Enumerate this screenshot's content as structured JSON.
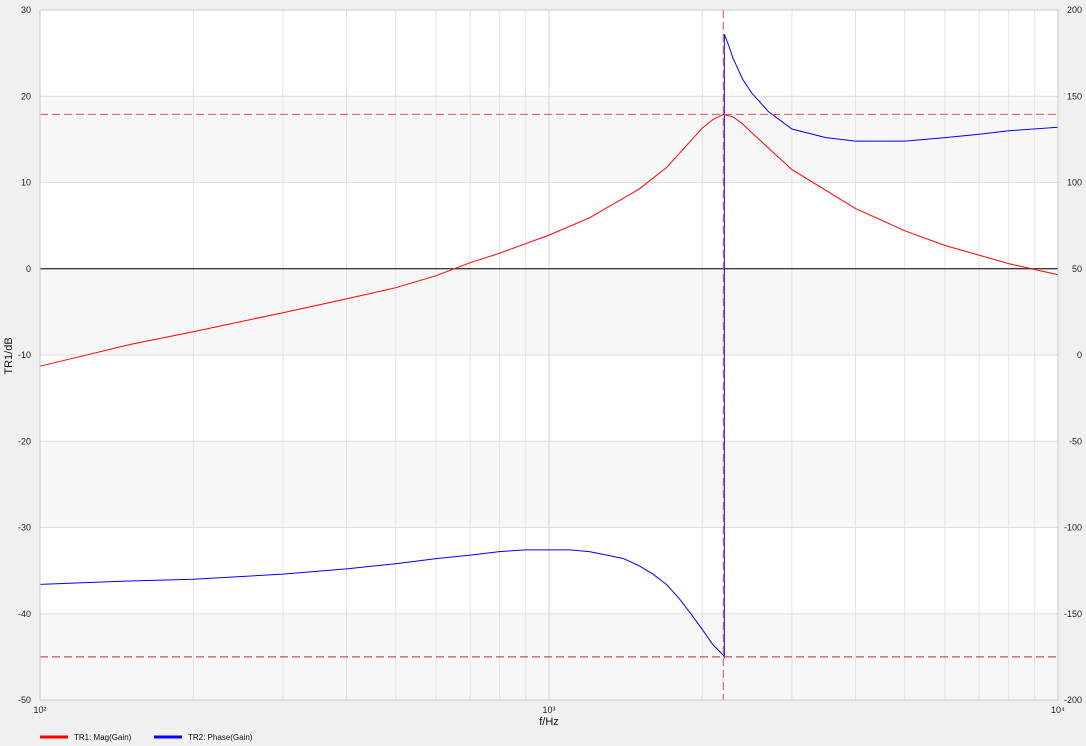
{
  "chart_data": {
    "type": "line",
    "title": "",
    "xlabel": "f/Hz",
    "ylabel": "TR1/dB",
    "xscale": "log",
    "xlim": [
      100,
      10000
    ],
    "ylim": [
      -50,
      30
    ],
    "y2lim": [
      -200,
      200
    ],
    "x_ticks": [
      "10²",
      "10³",
      "10⁴"
    ],
    "y_ticks": [
      "30",
      "20",
      "10",
      "0",
      "-10",
      "-20",
      "-30",
      "-40",
      "-50"
    ],
    "y2_ticks": [
      "200",
      "150",
      "100",
      "50",
      "0",
      "-50",
      "-100",
      "-150",
      "-200"
    ],
    "grid": true,
    "legend_position": "bottom-left",
    "series": [
      {
        "name": "TR1: Mag(Gain)",
        "axis": "left",
        "color": "#ff0000",
        "x": [
          100,
          150,
          200,
          300,
          400,
          500,
          600,
          700,
          800,
          1000,
          1200,
          1500,
          1700,
          2000,
          2100,
          2200,
          2300,
          2400,
          2500,
          3000,
          4000,
          5000,
          6000,
          8000,
          10000
        ],
        "y": [
          -11.3,
          -8.8,
          -7.3,
          -5.1,
          -3.5,
          -2.2,
          -0.8,
          0.7,
          1.8,
          3.9,
          5.9,
          9.2,
          11.7,
          16.3,
          17.3,
          17.9,
          17.6,
          16.8,
          15.8,
          11.5,
          7.0,
          4.4,
          2.7,
          0.6,
          -0.7
        ]
      },
      {
        "name": "TR2: Phase(Gain)",
        "axis": "right",
        "color": "#0000ff",
        "x": [
          100,
          150,
          200,
          300,
          400,
          500,
          600,
          700,
          800,
          900,
          1000,
          1100,
          1200,
          1300,
          1400,
          1500,
          1600,
          1700,
          1800,
          1900,
          2000,
          2100,
          2150,
          2200,
          2210,
          2210,
          2250,
          2300,
          2400,
          2500,
          2700,
          3000,
          3500,
          4000,
          5000,
          6000,
          7000,
          8000,
          10000
        ],
        "y": [
          -133,
          -131,
          -130,
          -127,
          -124,
          -121,
          -118,
          -116,
          -114,
          -113,
          -113,
          -113,
          -114,
          -116,
          -118,
          -122,
          -127,
          -133,
          -141,
          -150,
          -159,
          -168,
          -171,
          -174,
          -175,
          186,
          180,
          172,
          160,
          152,
          141,
          131,
          126,
          124,
          124,
          126,
          128,
          130,
          132
        ]
      }
    ],
    "cursor": {
      "x": 2200,
      "y_mag": 17.9,
      "y_phase": -175
    }
  }
}
